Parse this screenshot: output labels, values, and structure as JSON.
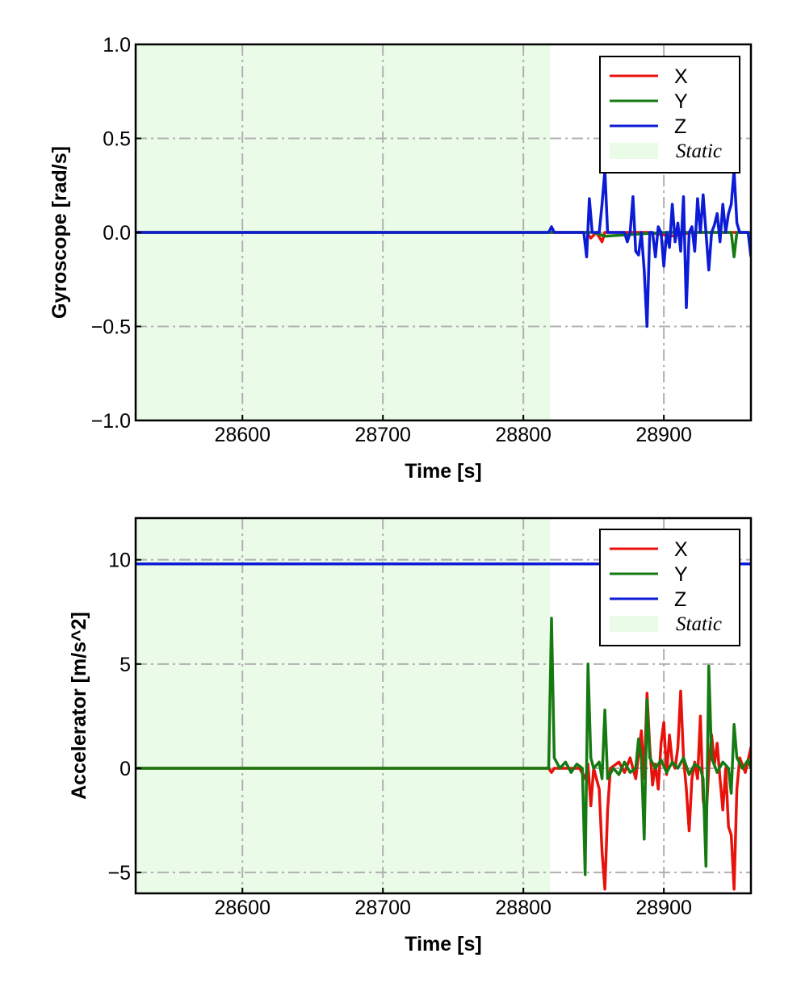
{
  "colors": {
    "X": "#e8120c",
    "Y": "#157a12",
    "Z": "#0b1bd6",
    "static": "#eafbe8",
    "grid": "#b0b0b0"
  },
  "chart_data": [
    {
      "type": "line",
      "xlabel": "Time [s]",
      "ylabel": "Gyroscope [rad/s]",
      "xlim": [
        28524,
        28962
      ],
      "ylim": [
        -1.0,
        1.0
      ],
      "xticks": [
        28600,
        28700,
        28800,
        28900
      ],
      "xtick_labels": [
        "28600",
        "28700",
        "28800",
        "28900"
      ],
      "yticks": [
        -1.0,
        -0.5,
        0.0,
        0.5,
        1.0
      ],
      "ytick_labels": [
        "−1.0",
        "−0.5",
        "0.0",
        "0.5",
        "1.0"
      ],
      "grid": true,
      "legend_position": "top-right",
      "legend": [
        "X",
        "Y",
        "Z",
        "Static"
      ],
      "static_region": [
        28524,
        28819
      ],
      "series": [
        {
          "name": "X",
          "points": [
            [
              28524,
              0.0
            ],
            [
              28819,
              0.0
            ],
            [
              28845,
              0.0
            ],
            [
              28848,
              -0.03
            ],
            [
              28852,
              0.0
            ],
            [
              28856,
              -0.05
            ],
            [
              28858,
              0.0
            ],
            [
              28890,
              0.0
            ],
            [
              28905,
              -0.02
            ],
            [
              28920,
              0.0
            ],
            [
              28962,
              0.0
            ]
          ]
        },
        {
          "name": "Y",
          "points": [
            [
              28524,
              0.0
            ],
            [
              28819,
              0.0
            ],
            [
              28850,
              0.0
            ],
            [
              28858,
              -0.02
            ],
            [
              28900,
              0.0
            ],
            [
              28948,
              0.0
            ],
            [
              28950,
              -0.13
            ],
            [
              28952,
              0.0
            ],
            [
              28962,
              0.0
            ]
          ]
        },
        {
          "name": "Z",
          "points": [
            [
              28524,
              0.0
            ],
            [
              28818,
              0.0
            ],
            [
              28820,
              0.03
            ],
            [
              28822,
              0.0
            ],
            [
              28843,
              0.0
            ],
            [
              28845,
              -0.13
            ],
            [
              28847,
              0.18
            ],
            [
              28849,
              0.0
            ],
            [
              28854,
              0.0
            ],
            [
              28856,
              0.15
            ],
            [
              28858,
              0.33
            ],
            [
              28860,
              0.0
            ],
            [
              28872,
              0.0
            ],
            [
              28874,
              -0.05
            ],
            [
              28876,
              0.0
            ],
            [
              28878,
              0.19
            ],
            [
              28880,
              -0.1
            ],
            [
              28882,
              -0.12
            ],
            [
              28884,
              0.0
            ],
            [
              28886,
              -0.2
            ],
            [
              28888,
              -0.5
            ],
            [
              28890,
              0.0
            ],
            [
              28892,
              0.0
            ],
            [
              28894,
              -0.13
            ],
            [
              28896,
              0.03
            ],
            [
              28898,
              0.0
            ],
            [
              28900,
              -0.18
            ],
            [
              28902,
              0.0
            ],
            [
              28904,
              -0.08
            ],
            [
              28906,
              0.15
            ],
            [
              28908,
              -0.05
            ],
            [
              28910,
              0.05
            ],
            [
              28912,
              -0.1
            ],
            [
              28914,
              0.19
            ],
            [
              28916,
              -0.4
            ],
            [
              28918,
              0.0
            ],
            [
              28920,
              0.03
            ],
            [
              28922,
              -0.1
            ],
            [
              28924,
              0.18
            ],
            [
              28926,
              0.0
            ],
            [
              28928,
              0.2
            ],
            [
              28930,
              0.0
            ],
            [
              28932,
              -0.2
            ],
            [
              28934,
              0.0
            ],
            [
              28936,
              0.04
            ],
            [
              28938,
              0.1
            ],
            [
              28940,
              -0.05
            ],
            [
              28942,
              0.15
            ],
            [
              28944,
              0.0
            ],
            [
              28946,
              0.1
            ],
            [
              28948,
              0.15
            ],
            [
              28950,
              0.33
            ],
            [
              28952,
              0.05
            ],
            [
              28954,
              0.0
            ],
            [
              28960,
              0.0
            ],
            [
              28962,
              -0.13
            ]
          ]
        }
      ]
    },
    {
      "type": "line",
      "xlabel": "Time [s]",
      "ylabel": "Accelerator [m/s^2]",
      "xlim": [
        28524,
        28962
      ],
      "ylim": [
        -6.0,
        12.0
      ],
      "xticks": [
        28600,
        28700,
        28800,
        28900
      ],
      "xtick_labels": [
        "28600",
        "28700",
        "28800",
        "28900"
      ],
      "yticks": [
        -5,
        0,
        5,
        10
      ],
      "ytick_labels": [
        "−5",
        "0",
        "5",
        "10"
      ],
      "grid": true,
      "legend_position": "top-right",
      "legend": [
        "X",
        "Y",
        "Z",
        "Static"
      ],
      "static_region": [
        28524,
        28819
      ],
      "series": [
        {
          "name": "X",
          "points": [
            [
              28524,
              0.0
            ],
            [
              28818,
              0.0
            ],
            [
              28820,
              -0.2
            ],
            [
              28822,
              0.0
            ],
            [
              28840,
              0.0
            ],
            [
              28844,
              -0.5
            ],
            [
              28846,
              0.2
            ],
            [
              28848,
              -1.8
            ],
            [
              28850,
              0.0
            ],
            [
              28854,
              -1.0
            ],
            [
              28856,
              -4.0
            ],
            [
              28858,
              -5.8
            ],
            [
              28860,
              -2.0
            ],
            [
              28862,
              0.0
            ],
            [
              28868,
              0.3
            ],
            [
              28872,
              -0.2
            ],
            [
              28876,
              0.5
            ],
            [
              28880,
              -0.5
            ],
            [
              28884,
              1.8
            ],
            [
              28886,
              -0.5
            ],
            [
              28888,
              3.6
            ],
            [
              28890,
              1.0
            ],
            [
              28892,
              -0.8
            ],
            [
              28894,
              0.2
            ],
            [
              28896,
              -1.0
            ],
            [
              28898,
              1.2
            ],
            [
              28900,
              2.2
            ],
            [
              28902,
              -0.3
            ],
            [
              28904,
              1.6
            ],
            [
              28906,
              0.3
            ],
            [
              28908,
              0.0
            ],
            [
              28910,
              1.0
            ],
            [
              28912,
              3.7
            ],
            [
              28914,
              0.5
            ],
            [
              28916,
              -1.0
            ],
            [
              28918,
              -3.0
            ],
            [
              28920,
              -0.5
            ],
            [
              28922,
              0.3
            ],
            [
              28924,
              -0.5
            ],
            [
              28926,
              2.5
            ],
            [
              28928,
              -1.5
            ],
            [
              28930,
              -2.5
            ],
            [
              28932,
              0.0
            ],
            [
              28934,
              1.6
            ],
            [
              28936,
              0.2
            ],
            [
              28938,
              1.2
            ],
            [
              28940,
              -0.5
            ],
            [
              28942,
              -2.0
            ],
            [
              28944,
              0.0
            ],
            [
              28946,
              -2.8
            ],
            [
              28948,
              -3.2
            ],
            [
              28950,
              -5.8
            ],
            [
              28952,
              -1.0
            ],
            [
              28954,
              0.5
            ],
            [
              28958,
              -0.2
            ],
            [
              28962,
              1.0
            ]
          ]
        },
        {
          "name": "Y",
          "points": [
            [
              28524,
              0.0
            ],
            [
              28818,
              0.0
            ],
            [
              28820,
              7.2
            ],
            [
              28822,
              0.5
            ],
            [
              28826,
              0.0
            ],
            [
              28830,
              0.3
            ],
            [
              28834,
              -0.2
            ],
            [
              28838,
              0.2
            ],
            [
              28842,
              0.0
            ],
            [
              28844,
              -5.1
            ],
            [
              28846,
              5.0
            ],
            [
              28848,
              0.5
            ],
            [
              28850,
              0.0
            ],
            [
              28854,
              0.3
            ],
            [
              28856,
              -0.5
            ],
            [
              28858,
              2.8
            ],
            [
              28860,
              -0.5
            ],
            [
              28864,
              0.0
            ],
            [
              28868,
              -0.3
            ],
            [
              28872,
              0.3
            ],
            [
              28876,
              -0.2
            ],
            [
              28880,
              0.0
            ],
            [
              28882,
              1.4
            ],
            [
              28884,
              0.5
            ],
            [
              28886,
              -3.4
            ],
            [
              28888,
              3.3
            ],
            [
              28890,
              0.5
            ],
            [
              28894,
              0.0
            ],
            [
              28898,
              0.4
            ],
            [
              28902,
              -0.2
            ],
            [
              28906,
              0.3
            ],
            [
              28910,
              0.0
            ],
            [
              28914,
              0.5
            ],
            [
              28918,
              -0.3
            ],
            [
              28922,
              0.2
            ],
            [
              28926,
              0.0
            ],
            [
              28928,
              -0.5
            ],
            [
              28930,
              -4.7
            ],
            [
              28932,
              4.9
            ],
            [
              28934,
              0.5
            ],
            [
              28938,
              -0.2
            ],
            [
              28942,
              0.3
            ],
            [
              28946,
              0.0
            ],
            [
              28948,
              -1.2
            ],
            [
              28950,
              2.1
            ],
            [
              28952,
              0.5
            ],
            [
              28956,
              0.0
            ],
            [
              28960,
              0.4
            ],
            [
              28962,
              0.0
            ]
          ]
        },
        {
          "name": "Z",
          "points": [
            [
              28524,
              9.8
            ],
            [
              28600,
              9.8
            ],
            [
              28700,
              9.8
            ],
            [
              28800,
              9.8
            ],
            [
              28900,
              9.8
            ],
            [
              28962,
              9.8
            ]
          ]
        }
      ]
    }
  ]
}
